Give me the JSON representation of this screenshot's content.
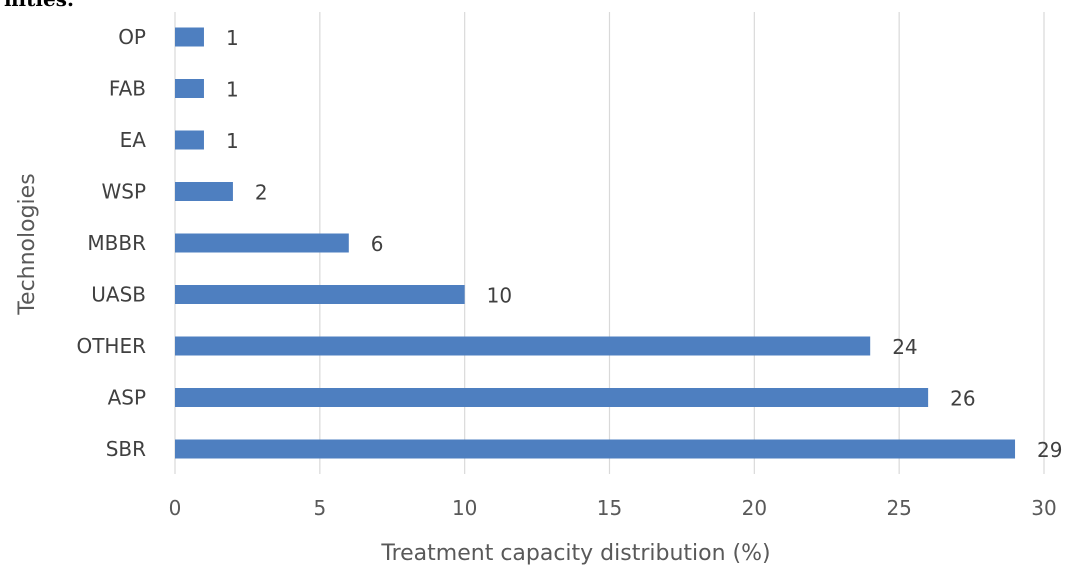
{
  "page": {
    "top_fragment": "nities."
  },
  "colors": {
    "bar": "#4E7FC0",
    "grid": "#D9D9D9",
    "text": "#404040"
  },
  "chart_data": {
    "type": "bar",
    "orientation": "horizontal",
    "title": "",
    "xlabel": "Treatment capacity distribution (%)",
    "ylabel": "Technologies",
    "categories": [
      "SBR",
      "ASP",
      "OTHER",
      "UASB",
      "MBBR",
      "WSP",
      "EA",
      "FAB",
      "OP"
    ],
    "values": [
      29,
      26,
      24,
      10,
      6,
      2,
      1,
      1,
      1
    ],
    "data_labels": [
      "29",
      "26",
      "24",
      "10",
      "6",
      "2",
      "1",
      "1",
      "1"
    ],
    "xlim": [
      0,
      30
    ],
    "xticks": [
      0,
      5,
      10,
      15,
      20,
      25,
      30
    ],
    "xtick_labels": [
      "0",
      "5",
      "10",
      "15",
      "20",
      "25",
      "30"
    ],
    "grid": "vertical",
    "legend": "none"
  }
}
